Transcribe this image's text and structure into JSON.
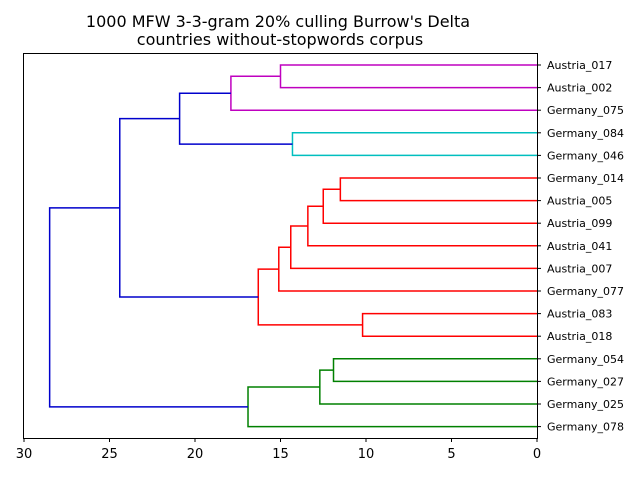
{
  "chart_data": {
    "type": "dendrogram",
    "title": "1000 MFW 3-3-gram 20% culling Burrow's Delta",
    "subtitle": "countries without-stopwords corpus",
    "orientation": "left",
    "xlim": [
      30,
      0
    ],
    "xticks": [
      30,
      25,
      20,
      15,
      10,
      5,
      0
    ],
    "leaves": [
      "Austria_017",
      "Austria_002",
      "Germany_075",
      "Germany_084",
      "Germany_046",
      "Germany_014",
      "Austria_005",
      "Austria_099",
      "Austria_041",
      "Austria_007",
      "Germany_077",
      "Austria_083",
      "Austria_018",
      "Germany_054",
      "Germany_027",
      "Germany_025",
      "Germany_078"
    ],
    "links": [
      {
        "a": "L0",
        "b": "L1",
        "height": 15.0,
        "color": "#bf00bf"
      },
      {
        "a": "M0",
        "b": "L2",
        "height": 17.9,
        "color": "#bf00bf"
      },
      {
        "a": "L3",
        "b": "L4",
        "height": 14.3,
        "color": "#00bfbf"
      },
      {
        "a": "M1",
        "b": "M2",
        "height": 20.9,
        "color": "#0000cc"
      },
      {
        "a": "L5",
        "b": "L6",
        "height": 11.5,
        "color": "#ff0000"
      },
      {
        "a": "M4",
        "b": "L7",
        "height": 12.5,
        "color": "#ff0000"
      },
      {
        "a": "M5",
        "b": "L8",
        "height": 13.4,
        "color": "#ff0000"
      },
      {
        "a": "M6",
        "b": "L9",
        "height": 14.4,
        "color": "#ff0000"
      },
      {
        "a": "M7",
        "b": "L10",
        "height": 15.1,
        "color": "#ff0000"
      },
      {
        "a": "L11",
        "b": "L12",
        "height": 10.2,
        "color": "#ff0000"
      },
      {
        "a": "M8",
        "b": "M9",
        "height": 16.3,
        "color": "#ff0000"
      },
      {
        "a": "M3",
        "b": "M10",
        "height": 24.4,
        "color": "#0000cc"
      },
      {
        "a": "L13",
        "b": "L14",
        "height": 11.9,
        "color": "#008000"
      },
      {
        "a": "M12",
        "b": "L15",
        "height": 12.7,
        "color": "#008000"
      },
      {
        "a": "M13",
        "b": "L16",
        "height": 16.9,
        "color": "#008000"
      },
      {
        "a": "M11",
        "b": "M14",
        "height": 28.5,
        "color": "#0000cc"
      }
    ]
  }
}
